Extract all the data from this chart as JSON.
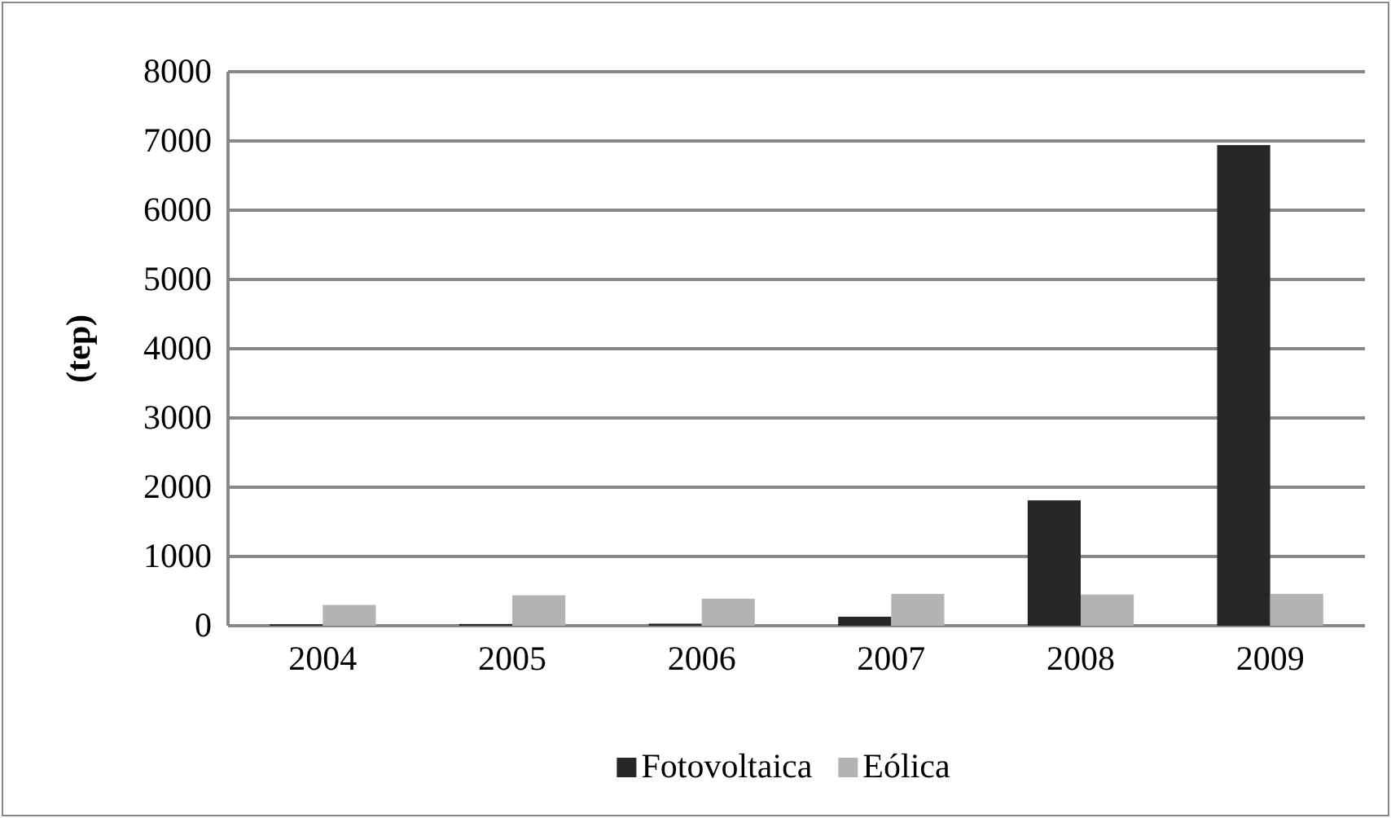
{
  "chart_data": {
    "type": "bar",
    "ylabel": "(tep)",
    "categories": [
      "2004",
      "2005",
      "2006",
      "2007",
      "2008",
      "2009"
    ],
    "series": [
      {
        "name": "Fotovoltaica",
        "color": "#262626",
        "values": [
          20,
          25,
          30,
          130,
          1810,
          6940
        ]
      },
      {
        "name": "Eólica",
        "color": "#b3b3b3",
        "values": [
          300,
          440,
          390,
          460,
          450,
          460
        ]
      }
    ],
    "ylim": [
      0,
      8000
    ],
    "yticks": [
      0,
      1000,
      2000,
      3000,
      4000,
      5000,
      6000,
      7000,
      8000
    ],
    "grid": "y",
    "legend": "bottom"
  }
}
